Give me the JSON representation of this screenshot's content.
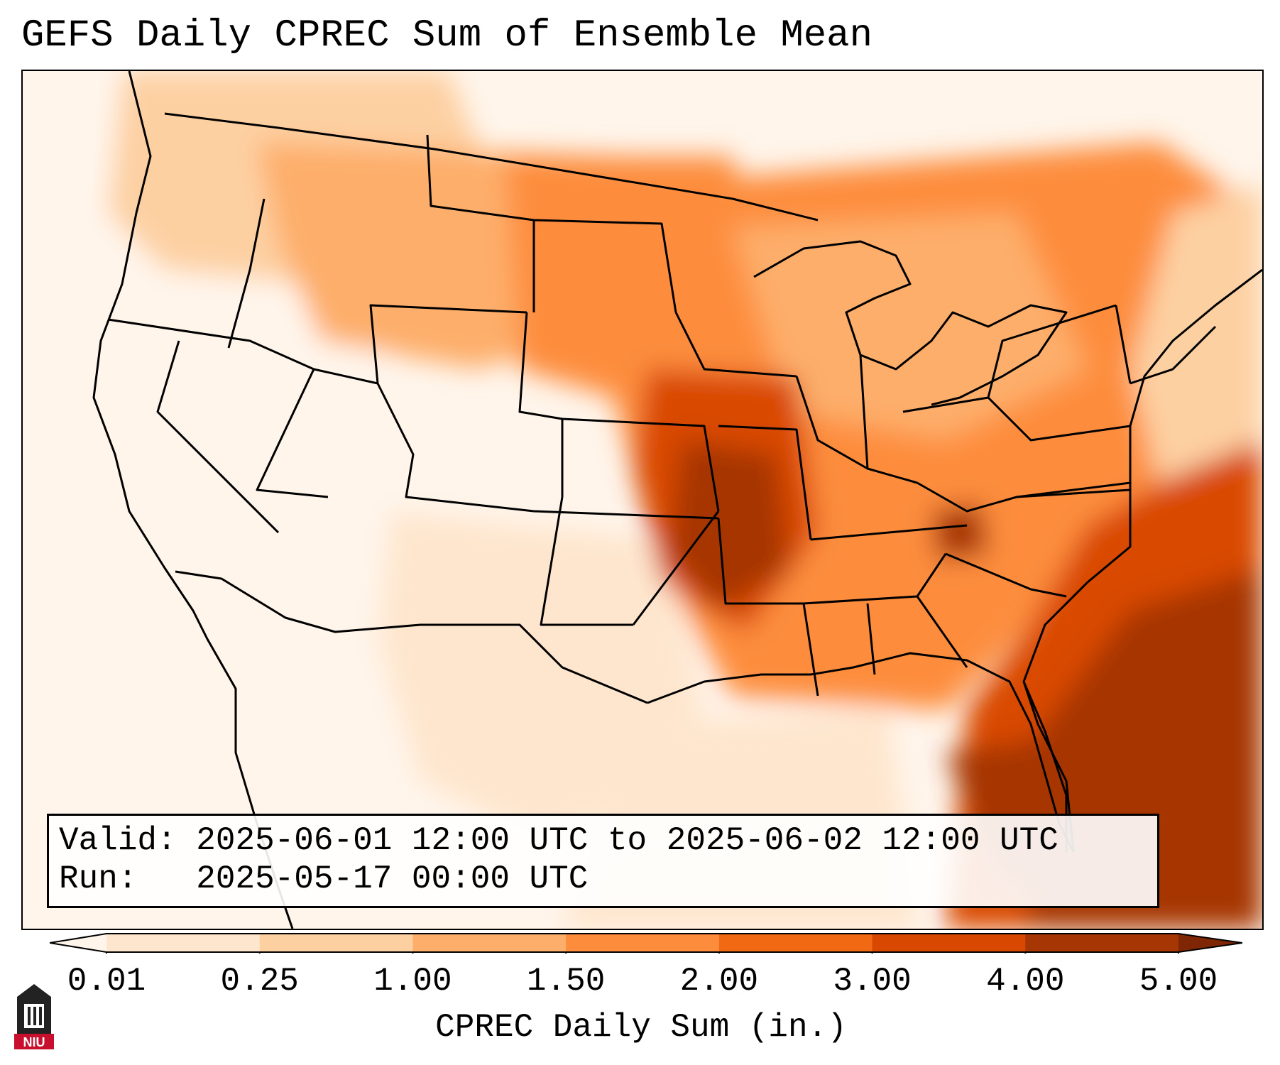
{
  "header": {
    "title": "GEFS Daily CPREC Sum of Ensemble Mean"
  },
  "info": {
    "valid_label": "Valid:",
    "valid_value": "2025-06-01 12:00 UTC to 2025-06-02 12:00 UTC",
    "run_label": "Run:",
    "run_value": "2025-05-17 00:00 UTC"
  },
  "colorbar": {
    "label": "CPREC Daily Sum (in.)",
    "ticks": [
      "0.01",
      "0.25",
      "1.00",
      "1.50",
      "2.00",
      "3.00",
      "4.00",
      "5.00"
    ],
    "colors": [
      "#fff5eb",
      "#fee6ce",
      "#fdd0a2",
      "#fdae6b",
      "#fd8d3c",
      "#f16913",
      "#d94801",
      "#a63603",
      "#7f2704"
    ]
  },
  "logo": {
    "text": "NIU",
    "color": "#c8102e"
  }
}
